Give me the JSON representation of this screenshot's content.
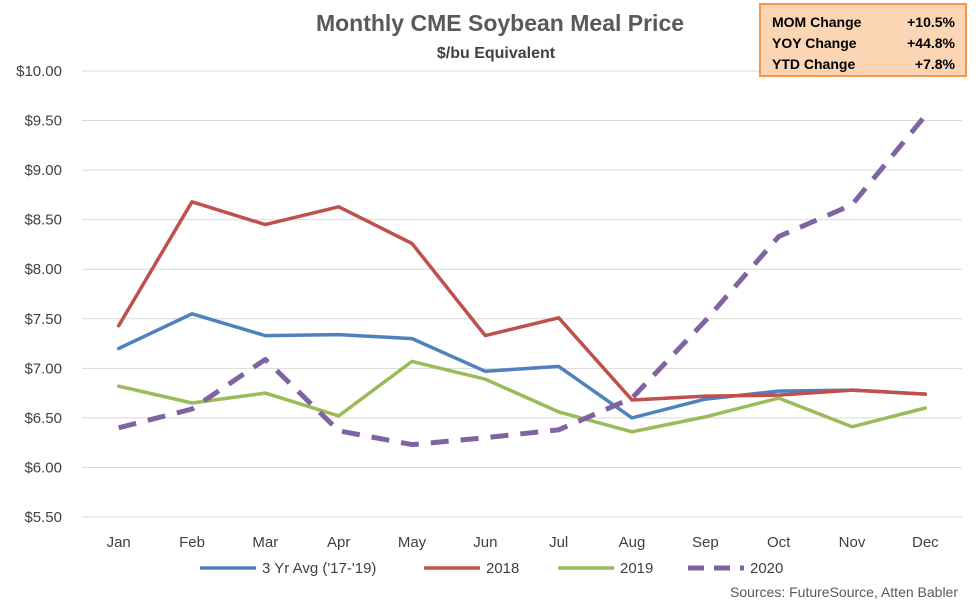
{
  "chart_data": {
    "type": "line",
    "title": "Monthly CME Soybean Meal Price",
    "subtitle": "$/bu Equivalent",
    "categories": [
      "Jan",
      "Feb",
      "Mar",
      "Apr",
      "May",
      "Jun",
      "Jul",
      "Aug",
      "Sep",
      "Oct",
      "Nov",
      "Dec"
    ],
    "ylim": [
      5.5,
      10.0
    ],
    "yticks": [
      5.5,
      6.0,
      6.5,
      7.0,
      7.5,
      8.0,
      8.5,
      9.0,
      9.5,
      10.0
    ],
    "ytick_labels": [
      "$5.50",
      "$6.00",
      "$6.50",
      "$7.00",
      "$7.50",
      "$8.00",
      "$8.50",
      "$9.00",
      "$9.50",
      "$10.00"
    ],
    "grid": "horizontal",
    "legend_position": "bottom",
    "series": [
      {
        "name": "3 Yr Avg ('17-'19)",
        "color": "#4F81BD",
        "dashed": false,
        "values": [
          7.2,
          7.55,
          7.33,
          7.34,
          7.3,
          6.97,
          7.02,
          6.5,
          6.69,
          6.77,
          6.78,
          6.74
        ]
      },
      {
        "name": "2018",
        "color": "#C0504D",
        "dashed": false,
        "values": [
          7.43,
          8.68,
          8.45,
          8.63,
          8.26,
          7.33,
          7.51,
          6.68,
          6.72,
          6.73,
          6.78,
          6.74
        ]
      },
      {
        "name": "2019",
        "color": "#9BBB59",
        "dashed": false,
        "values": [
          6.82,
          6.65,
          6.75,
          6.52,
          7.07,
          6.89,
          6.56,
          6.36,
          6.51,
          6.7,
          6.41,
          6.6
        ]
      },
      {
        "name": "2020",
        "color": "#8064A2",
        "dashed": true,
        "values": [
          6.4,
          6.59,
          7.09,
          6.37,
          6.23,
          6.3,
          6.38,
          6.7,
          7.48,
          8.33,
          8.65,
          9.55
        ]
      }
    ],
    "stats_box": {
      "rows": [
        {
          "label": "MOM Change",
          "value": "+10.5%"
        },
        {
          "label": "YOY Change",
          "value": "+44.8%"
        },
        {
          "label": "YTD Change",
          "value": "+7.8%"
        }
      ],
      "fill": "#FCD5B5",
      "border": "#F79646"
    },
    "source": "Sources: FutureSource, Atten Babler"
  }
}
